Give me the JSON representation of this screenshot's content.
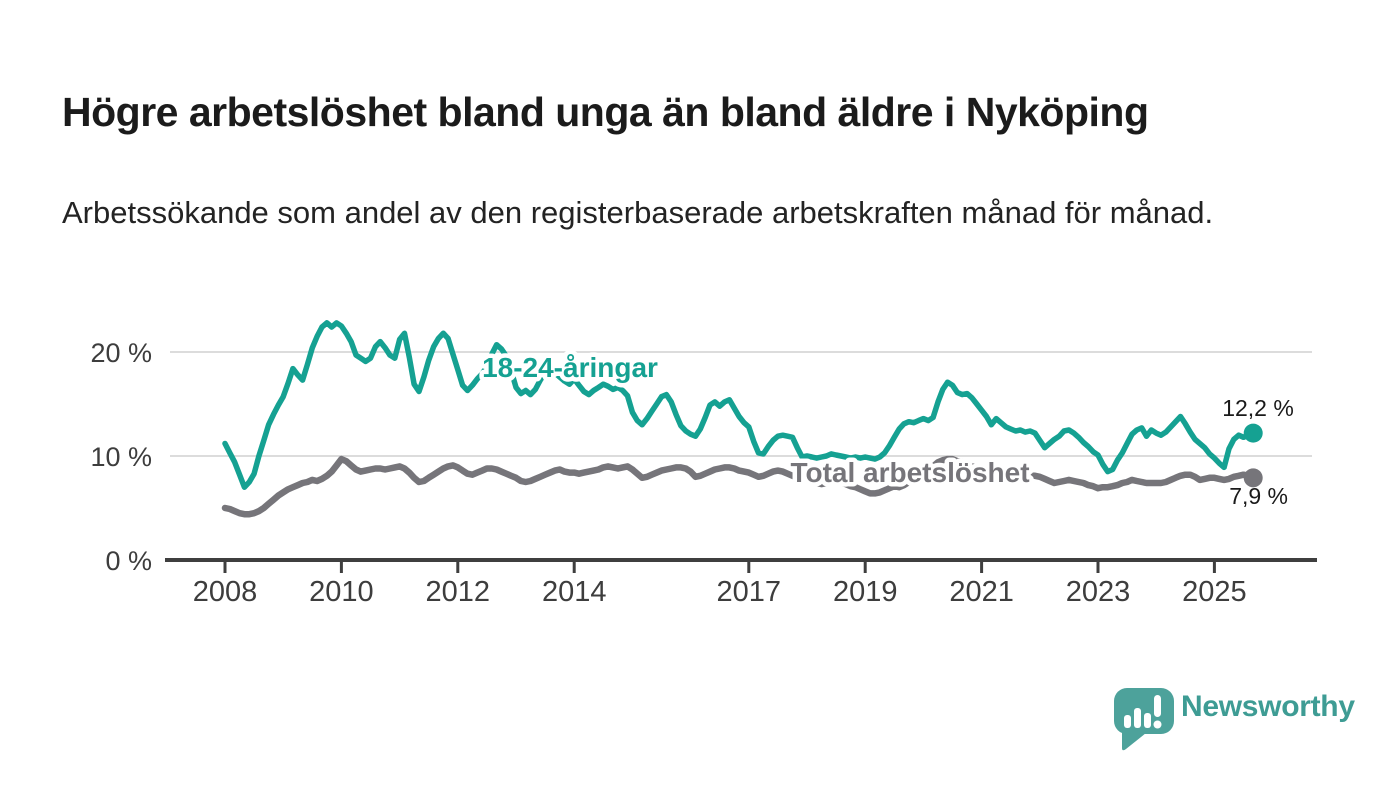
{
  "header": {
    "title": "Högre arbetslöshet bland unga än bland äldre i Nyköping",
    "subtitle": "Arbetssökande som andel av den registerbaserade arbetskraften månad för månad."
  },
  "branding": {
    "logo_text": "Newsworthy",
    "logo_color": "#4da29b",
    "logo_text_color": "#3e9c94"
  },
  "chart_data": {
    "type": "line",
    "title": "",
    "xlabel": "",
    "ylabel": "",
    "frequency": "monthly",
    "x_range": [
      "2008-01",
      "2025-09"
    ],
    "ylim": [
      0,
      24
    ],
    "grid": "horizontal",
    "colors": {
      "grid": "#dcdcdc",
      "axis": "#3f3f3f",
      "tick_label": "#3d3d3d",
      "value_label": "#1a1a1a"
    },
    "x_tick_years": [
      2008,
      2010,
      2012,
      2014,
      2017,
      2019,
      2021,
      2023,
      2025
    ],
    "x_tick_labels": [
      "2008",
      "2010",
      "2012",
      "2014",
      "2017",
      "2019",
      "2021",
      "2023",
      "2025"
    ],
    "y_ticks": [
      {
        "label": "0 %",
        "value": 0
      },
      {
        "label": "10 %",
        "value": 10
      },
      {
        "label": "20 %",
        "value": 20
      }
    ],
    "series": [
      {
        "name": "18-24-åringar",
        "color": "#15a192",
        "end_label": "12,2 %",
        "end_value": 12.2,
        "values": [
          11.2,
          10.3,
          9.4,
          8.2,
          7.0,
          7.5,
          8.3,
          10.0,
          11.5,
          13.0,
          14.0,
          14.9,
          15.7,
          17.0,
          18.4,
          17.8,
          17.3,
          18.8,
          20.4,
          21.5,
          22.4,
          22.8,
          22.4,
          22.8,
          22.5,
          21.8,
          21.0,
          19.7,
          19.4,
          19.1,
          19.4,
          20.5,
          21.0,
          20.4,
          19.7,
          19.4,
          21.2,
          21.8,
          19.5,
          16.9,
          16.2,
          17.6,
          19.2,
          20.5,
          21.3,
          21.8,
          21.3,
          19.8,
          18.3,
          16.8,
          16.3,
          16.8,
          17.4,
          17.9,
          18.6,
          19.8,
          20.7,
          20.3,
          19.6,
          18.2,
          16.6,
          16.0,
          16.3,
          15.9,
          16.4,
          17.3,
          18.0,
          18.4,
          18.0,
          17.6,
          17.2,
          16.9,
          17.4,
          16.8,
          16.2,
          15.9,
          16.3,
          16.6,
          16.9,
          16.7,
          16.4,
          16.6,
          16.3,
          15.8,
          14.2,
          13.4,
          13.0,
          13.6,
          14.3,
          15.0,
          15.7,
          15.9,
          15.2,
          14.0,
          12.9,
          12.4,
          12.1,
          11.9,
          12.6,
          13.7,
          14.9,
          15.2,
          14.8,
          15.2,
          15.4,
          14.6,
          13.8,
          13.2,
          12.8,
          11.4,
          10.3,
          10.2,
          10.9,
          11.5,
          11.9,
          12.0,
          11.9,
          11.8,
          10.8,
          9.9,
          10.0,
          9.9,
          9.8,
          9.9,
          10.0,
          10.2,
          10.1,
          10.0,
          9.9,
          9.8,
          9.9,
          9.8,
          9.9,
          9.8,
          9.7,
          9.9,
          10.3,
          11.0,
          11.8,
          12.6,
          13.1,
          13.3,
          13.2,
          13.4,
          13.6,
          13.4,
          13.7,
          15.2,
          16.4,
          17.1,
          16.8,
          16.1,
          15.9,
          16.0,
          15.6,
          15.0,
          14.4,
          13.8,
          13.0,
          13.6,
          13.2,
          12.8,
          12.6,
          12.4,
          12.5,
          12.3,
          12.4,
          12.2,
          11.5,
          10.8,
          11.2,
          11.6,
          11.9,
          12.4,
          12.5,
          12.2,
          11.8,
          11.3,
          10.9,
          10.4,
          10.1,
          9.2,
          8.5,
          8.7,
          9.6,
          10.3,
          11.2,
          12.1,
          12.5,
          12.7,
          11.9,
          12.5,
          12.2,
          12.0,
          12.3,
          12.8,
          13.3,
          13.8,
          13.1,
          12.3,
          11.6,
          11.2,
          10.8,
          10.2,
          9.8,
          9.3,
          8.9,
          10.7,
          11.6,
          12.0,
          11.8,
          12.0,
          12.2
        ]
      },
      {
        "name": "Total arbetslöshet",
        "color": "#76757a",
        "end_label": "7,9 %",
        "end_value": 7.9,
        "values": [
          5.0,
          4.9,
          4.7,
          4.5,
          4.4,
          4.4,
          4.5,
          4.7,
          5.0,
          5.4,
          5.8,
          6.2,
          6.5,
          6.8,
          7.0,
          7.2,
          7.4,
          7.5,
          7.7,
          7.6,
          7.8,
          8.1,
          8.5,
          9.1,
          9.7,
          9.5,
          9.1,
          8.7,
          8.5,
          8.6,
          8.7,
          8.8,
          8.8,
          8.7,
          8.8,
          8.9,
          9.0,
          8.8,
          8.4,
          7.9,
          7.5,
          7.6,
          7.9,
          8.2,
          8.5,
          8.8,
          9.0,
          9.1,
          8.9,
          8.6,
          8.3,
          8.2,
          8.4,
          8.6,
          8.8,
          8.8,
          8.7,
          8.5,
          8.3,
          8.1,
          7.9,
          7.6,
          7.5,
          7.6,
          7.8,
          8.0,
          8.2,
          8.4,
          8.6,
          8.7,
          8.5,
          8.4,
          8.4,
          8.3,
          8.4,
          8.5,
          8.6,
          8.7,
          8.9,
          9.0,
          8.9,
          8.8,
          8.9,
          9.0,
          8.7,
          8.3,
          7.9,
          8.0,
          8.2,
          8.4,
          8.6,
          8.7,
          8.8,
          8.9,
          8.9,
          8.8,
          8.5,
          8.0,
          8.1,
          8.3,
          8.5,
          8.7,
          8.8,
          8.9,
          8.9,
          8.8,
          8.6,
          8.5,
          8.4,
          8.2,
          8.0,
          8.1,
          8.3,
          8.5,
          8.6,
          8.5,
          8.3,
          8.1,
          7.9,
          7.8,
          7.8,
          7.6,
          7.4,
          7.3,
          7.4,
          7.5,
          7.6,
          7.5,
          7.3,
          7.1,
          7.0,
          6.8,
          6.6,
          6.4,
          6.4,
          6.5,
          6.7,
          6.9,
          7.1,
          7.0,
          7.2,
          7.5,
          7.8,
          8.1,
          8.4,
          8.6,
          9.0,
          9.4,
          9.6,
          9.7,
          9.7,
          9.5,
          9.4,
          9.2,
          9.0,
          8.9,
          8.9,
          8.8,
          8.7,
          8.6,
          8.5,
          8.4,
          8.4,
          8.3,
          8.2,
          8.2,
          8.1,
          8.1,
          8.0,
          7.8,
          7.6,
          7.4,
          7.5,
          7.6,
          7.7,
          7.6,
          7.5,
          7.4,
          7.2,
          7.1,
          6.9,
          7.0,
          7.0,
          7.1,
          7.2,
          7.4,
          7.5,
          7.7,
          7.6,
          7.5,
          7.4,
          7.4,
          7.4,
          7.4,
          7.5,
          7.7,
          7.9,
          8.1,
          8.2,
          8.2,
          8.0,
          7.7,
          7.8,
          7.9,
          7.9,
          7.8,
          7.7,
          7.8,
          8.0,
          8.1,
          8.2,
          8.1,
          7.9
        ]
      }
    ]
  }
}
